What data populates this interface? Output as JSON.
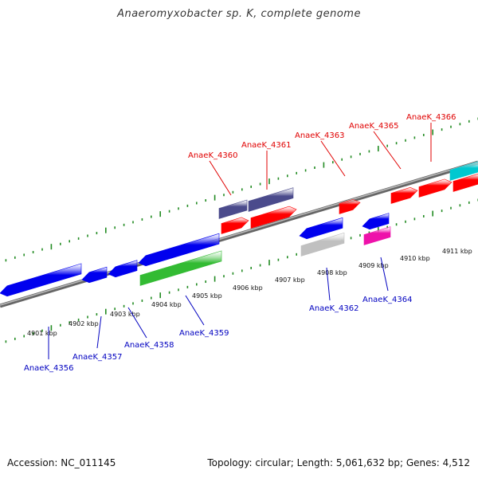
{
  "title": "Anaeromyxobacter sp. K, complete genome",
  "footer": {
    "accession": "Accession: NC_011145",
    "topology": "Topology: circular; Length: 5,061,632 bp; Genes: 4,512"
  },
  "colors": {
    "backbone": "#888888",
    "forward_label": "#e00000",
    "reverse_label": "#0000c0",
    "ticks": "#228b22"
  },
  "scale": {
    "unit": "kbp",
    "labels": [
      "4901 kbp",
      "4902 kbp",
      "4903 kbp",
      "4904 kbp",
      "4905 kbp",
      "4906 kbp",
      "4907 kbp",
      "4908 kbp",
      "4909 kbp",
      "4910 kbp",
      "4911 kbp"
    ]
  },
  "genes_forward": [
    {
      "label": "AnaeK_4360",
      "color": "#ff0000"
    },
    {
      "label": "AnaeK_4361",
      "color": "#ff0000"
    },
    {
      "label": "AnaeK_4363",
      "color": "#ff0000"
    },
    {
      "label": "AnaeK_4365",
      "color": "#ff0000"
    },
    {
      "label": "AnaeK_4366",
      "color": "#ff0000"
    }
  ],
  "genes_reverse": [
    {
      "label": "AnaeK_4356",
      "color": "#0000ee"
    },
    {
      "label": "AnaeK_4357",
      "color": "#0000ee"
    },
    {
      "label": "AnaeK_4358",
      "color": "#0000ee"
    },
    {
      "label": "AnaeK_4359",
      "color": "#0000ee"
    },
    {
      "label": "AnaeK_4362",
      "color": "#0000ee"
    },
    {
      "label": "AnaeK_4364",
      "color": "#0000ee"
    }
  ]
}
